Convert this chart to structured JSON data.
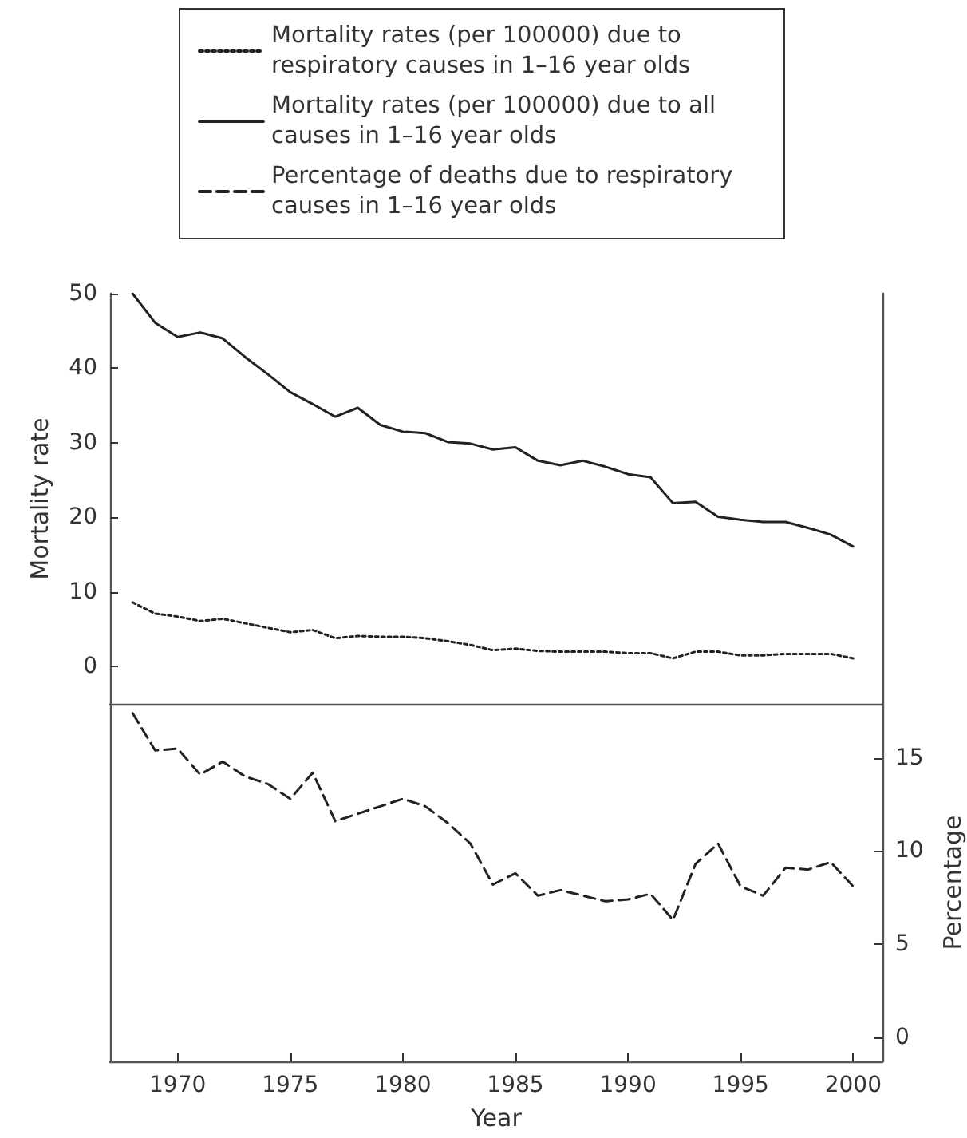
{
  "chart_data": [
    {
      "type": "line",
      "ylabel": "Mortality rate",
      "x": [
        1968,
        1969,
        1970,
        1971,
        1972,
        1973,
        1974,
        1975,
        1976,
        1977,
        1978,
        1979,
        1980,
        1981,
        1982,
        1983,
        1984,
        1985,
        1986,
        1987,
        1988,
        1989,
        1990,
        1991,
        1992,
        1993,
        1994,
        1995,
        1996,
        1997,
        1998,
        1999,
        2000
      ],
      "series": [
        {
          "name": "Mortality rates (per 100000) due to respiratory causes in 1–16 year olds",
          "color": "#222222",
          "line_style": "dotted",
          "values": [
            8.6,
            7.1,
            6.7,
            6.1,
            6.4,
            5.8,
            5.2,
            4.6,
            4.9,
            3.8,
            4.1,
            4.0,
            4.0,
            3.8,
            3.4,
            2.9,
            2.2,
            2.4,
            2.1,
            2.0,
            2.0,
            2.0,
            1.8,
            1.8,
            1.1,
            2.0,
            2.0,
            1.5,
            1.5,
            1.7,
            1.7,
            1.7,
            1.1
          ]
        },
        {
          "name": "Mortality rates (per 100000) due to all causes in 1–16 year olds",
          "color": "#222222",
          "line_style": "solid",
          "values": [
            50.0,
            46.1,
            44.2,
            44.8,
            44.0,
            41.5,
            39.2,
            36.8,
            35.2,
            33.5,
            34.7,
            32.4,
            31.5,
            31.3,
            30.1,
            29.9,
            29.1,
            29.4,
            27.6,
            27.0,
            27.6,
            26.8,
            25.8,
            25.4,
            21.9,
            22.1,
            20.1,
            19.7,
            19.4,
            19.4,
            18.6,
            17.7,
            16.1
          ]
        }
      ],
      "xlim": [
        1967,
        2001.3
      ],
      "ylim": [
        -5,
        50
      ],
      "yticks": [
        0,
        10,
        20,
        30,
        40,
        50
      ],
      "tick_labels": "y",
      "legend": "top",
      "grid": false
    },
    {
      "type": "line",
      "xlabel": "Year",
      "y2label": "Percentage",
      "x": [
        1968,
        1969,
        1970,
        1971,
        1972,
        1973,
        1974,
        1975,
        1976,
        1977,
        1978,
        1979,
        1980,
        1981,
        1982,
        1983,
        1984,
        1985,
        1986,
        1987,
        1988,
        1989,
        1990,
        1991,
        1992,
        1993,
        1994,
        1995,
        1996,
        1997,
        1998,
        1999,
        2000
      ],
      "series": [
        {
          "name": "Percentage of deaths due to respiratory causes in 1–16 year olds",
          "color": "#222222",
          "line_style": "dashed",
          "axis": "y2",
          "values": [
            17.4,
            15.4,
            15.5,
            14.1,
            14.8,
            14.0,
            13.6,
            12.8,
            14.2,
            11.6,
            12.0,
            12.4,
            12.8,
            12.4,
            11.5,
            10.4,
            8.2,
            8.8,
            7.6,
            7.9,
            7.6,
            7.3,
            7.4,
            7.7,
            6.3,
            9.3,
            10.4,
            8.1,
            7.6,
            9.1,
            9.0,
            9.4,
            8.1
          ]
        }
      ],
      "xlim": [
        1967,
        2001.3
      ],
      "xticks": [
        1970,
        1975,
        1980,
        1985,
        1990,
        1995,
        2000
      ],
      "y2lim": [
        -1.3,
        17.9
      ],
      "y2ticks": [
        0,
        5,
        10,
        15
      ],
      "legend": "top",
      "grid": false
    }
  ]
}
